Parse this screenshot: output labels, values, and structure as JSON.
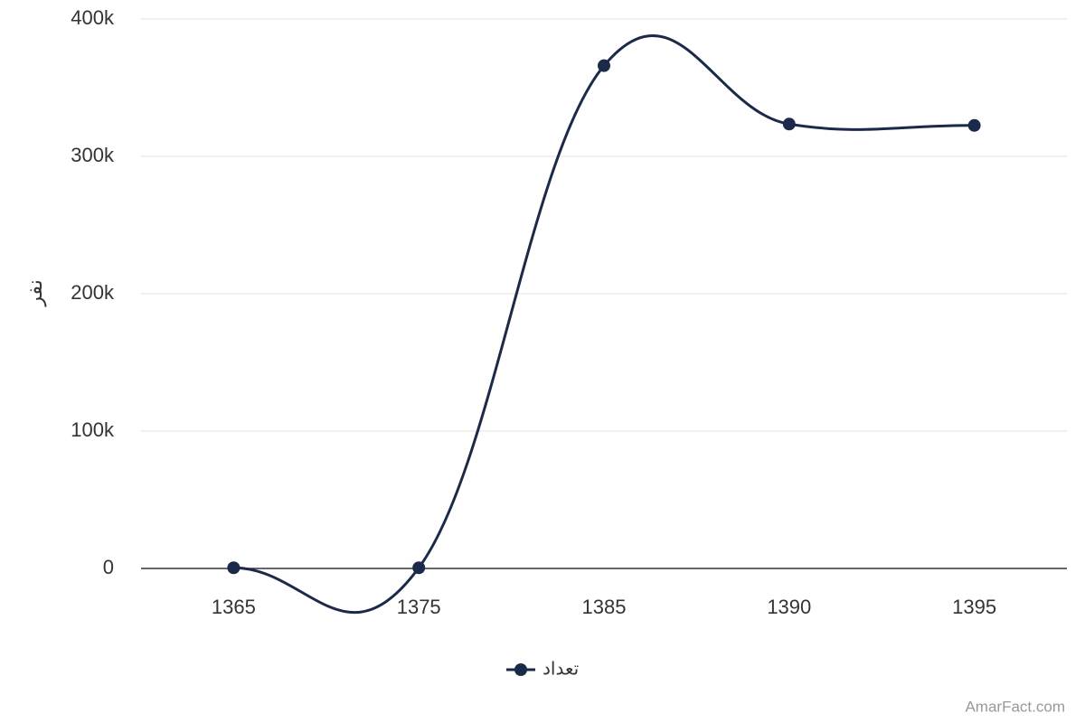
{
  "chart_data": {
    "type": "line",
    "y_axis_label": "نفر",
    "categories": [
      "1365",
      "1375",
      "1385",
      "1390",
      "1395"
    ],
    "series": [
      {
        "name": "تعداد",
        "color": "#1b2a4a",
        "values": [
          500,
          500,
          366000,
          323500,
          322500
        ]
      }
    ],
    "ylim": [
      0,
      400000
    ],
    "yticks": [
      0,
      {
        "value": 100000,
        "label": "100k"
      },
      {
        "value": 200000,
        "label": "200k"
      },
      {
        "value": 300000,
        "label": "300k"
      },
      {
        "value": 400000,
        "label": "400k"
      }
    ],
    "grid": true,
    "legend": "bottom",
    "smooth": true,
    "credit": "AmarFact.com"
  }
}
